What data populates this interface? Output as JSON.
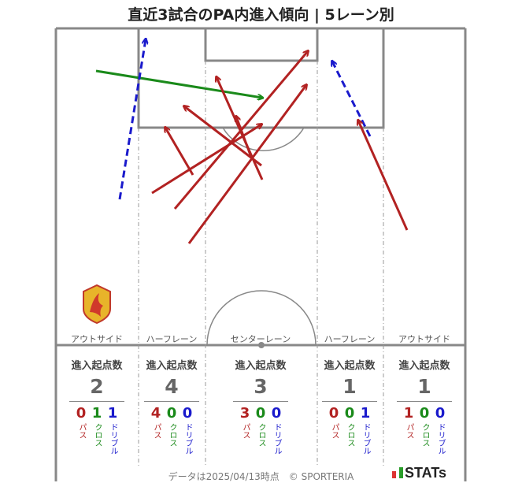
{
  "title": "直近3試合のPA内進入傾向 | 5レーン別",
  "lanes": [
    {
      "name": "アウトサイド",
      "header": "進入起点数",
      "total": "2",
      "pass": "0",
      "cross": "1",
      "dribble": "1"
    },
    {
      "name": "ハーフレーン",
      "header": "進入起点数",
      "total": "4",
      "pass": "4",
      "cross": "0",
      "dribble": "0"
    },
    {
      "name": "センターレーン",
      "header": "進入起点数",
      "total": "3",
      "pass": "3",
      "cross": "0",
      "dribble": "0"
    },
    {
      "name": "ハーフレーン",
      "header": "進入起点数",
      "total": "1",
      "pass": "0",
      "cross": "0",
      "dribble": "1"
    },
    {
      "name": "アウトサイド",
      "header": "進入起点数",
      "total": "1",
      "pass": "1",
      "cross": "0",
      "dribble": "0"
    }
  ],
  "labels": {
    "pass": "パス",
    "cross": "クロス",
    "dribble": "ドリブル"
  },
  "colors": {
    "pass": "#b22222",
    "cross": "#1a8a1a",
    "dribble": "#1a1acc",
    "pitch_line": "#888888"
  },
  "footer": "データは2025/04/13時点　© SPORTERIA",
  "brand": "STATs",
  "chart_data": {
    "type": "scatter",
    "arrows": [
      {
        "kind": "cross",
        "from": [
          122,
          90
        ],
        "to": [
          333,
          124
        ]
      },
      {
        "kind": "dribble",
        "from": [
          152,
          253
        ],
        "to": [
          185,
          50
        ]
      },
      {
        "kind": "dribble",
        "from": [
          470,
          173
        ],
        "to": [
          422,
          78
        ]
      },
      {
        "kind": "pass",
        "from": [
          245,
          222
        ],
        "to": [
          210,
          162
        ]
      },
      {
        "kind": "pass",
        "from": [
          193,
          245
        ],
        "to": [
          332,
          158
        ]
      },
      {
        "kind": "pass",
        "from": [
          333,
          228
        ],
        "to": [
          275,
          98
        ]
      },
      {
        "kind": "pass",
        "from": [
          332,
          210
        ],
        "to": [
          234,
          135
        ]
      },
      {
        "kind": "pass",
        "from": [
          222,
          265
        ],
        "to": [
          391,
          65
        ]
      },
      {
        "kind": "pass",
        "from": [
          240,
          309
        ],
        "to": [
          389,
          108
        ]
      },
      {
        "kind": "pass",
        "from": [
          320,
          202
        ],
        "to": [
          300,
          148
        ]
      },
      {
        "kind": "pass",
        "from": [
          517,
          292
        ],
        "to": [
          455,
          153
        ]
      }
    ]
  }
}
